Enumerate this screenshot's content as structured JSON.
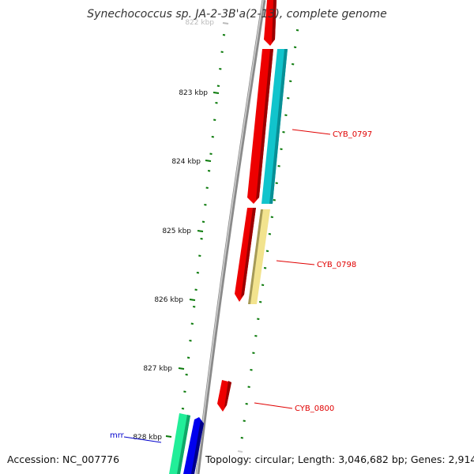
{
  "title": "Synechococcus sp. JA-2-3B'a(2-13), complete genome",
  "footer": {
    "accession": "Accession: NC_007776",
    "topology": "Topology: circular; Length: 3,046,682 bp; Genes: 2,914"
  },
  "ticks": [
    "822 kbp",
    "823 kbp",
    "824 kbp",
    "825 kbp",
    "826 kbp",
    "827 kbp",
    "828 kbp"
  ],
  "gene_labels": [
    {
      "text": "CYB_0797",
      "color": "#e00000"
    },
    {
      "text": "CYB_0798",
      "color": "#e00000"
    },
    {
      "text": "CYB_0800",
      "color": "#e00000"
    },
    {
      "text": "mrr",
      "color": "#0000cc"
    }
  ],
  "colors": {
    "backbone": "#8a8a8a",
    "cds": "#ee0000",
    "trna_cyan": "#11c4cc",
    "pseudo_yellow": "#f2e38e",
    "mrr_green": "#22ee99",
    "mrr_blue": "#0000ee",
    "gc_dash": "#0a7a0a"
  }
}
